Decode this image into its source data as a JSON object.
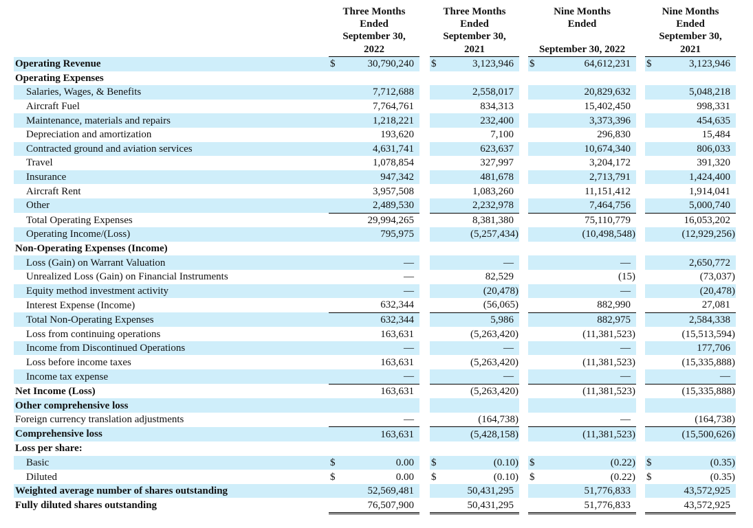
{
  "headers": [
    {
      "top": [
        "Three Months",
        "Ended",
        "September 30,"
      ],
      "bottom": "2022"
    },
    {
      "top": [
        "Three Months",
        "Ended",
        "September 30,"
      ],
      "bottom": "2021"
    },
    {
      "top": [
        "Nine Months",
        "Ended"
      ],
      "bottom": "September 30, 2022"
    },
    {
      "top": [
        "Nine Months",
        "Ended",
        "September 30,"
      ],
      "bottom": "2021"
    }
  ],
  "rows": [
    {
      "label": "Operating Revenue",
      "currency": [
        "$",
        "$",
        "$",
        "$"
      ],
      "values": [
        "30,790,240",
        "3,123,946",
        "64,612,231",
        "3,123,946"
      ]
    },
    {
      "label": "Operating Expenses"
    },
    {
      "label": "Salaries, Wages, & Benefits",
      "values": [
        "7,712,688",
        "2,558,017",
        "20,829,632",
        "5,048,218"
      ]
    },
    {
      "label": "Aircraft Fuel",
      "values": [
        "7,764,761",
        "834,313",
        "15,402,450",
        "998,331"
      ]
    },
    {
      "label": "Maintenance, materials and repairs",
      "values": [
        "1,218,221",
        "232,400",
        "3,373,396",
        "454,635"
      ]
    },
    {
      "label": "Depreciation and amortization",
      "values": [
        "193,620",
        "7,100",
        "296,830",
        "15,484"
      ]
    },
    {
      "label": "Contracted ground and aviation services",
      "values": [
        "4,631,741",
        "623,637",
        "10,674,340",
        "806,033"
      ]
    },
    {
      "label": "Travel",
      "values": [
        "1,078,854",
        "327,997",
        "3,204,172",
        "391,320"
      ]
    },
    {
      "label": "Insurance",
      "values": [
        "947,342",
        "481,678",
        "2,713,791",
        "1,424,400"
      ]
    },
    {
      "label": "Aircraft Rent",
      "values": [
        "3,957,508",
        "1,083,260",
        "11,151,412",
        "1,914,041"
      ]
    },
    {
      "label": "Other",
      "values": [
        "2,489,530",
        "2,232,978",
        "7,464,756",
        "5,000,740"
      ]
    },
    {
      "label": "Total Operating Expenses",
      "values": [
        "29,994,265",
        "8,381,380",
        "75,110,779",
        "16,053,202"
      ]
    },
    {
      "label": "Operating Income/(Loss)",
      "values": [
        "795,975",
        "(5,257,434)",
        "(10,498,548)",
        "(12,929,256)"
      ]
    },
    {
      "label": "Non-Operating Expenses (Income)"
    },
    {
      "label": "Loss (Gain) on Warrant Valuation",
      "values": [
        "—",
        "—",
        "—",
        "2,650,772"
      ]
    },
    {
      "label": "Unrealized Loss (Gain) on Financial Instruments",
      "values": [
        "—",
        "82,529",
        "(15)",
        "(73,037)"
      ]
    },
    {
      "label": "Equity method investment activity",
      "values": [
        "—",
        "(20,478)",
        "—",
        "(20,478)"
      ]
    },
    {
      "label": "Interest Expense (Income)",
      "values": [
        "632,344",
        "(56,065)",
        "882,990",
        "27,081"
      ]
    },
    {
      "label": "Total Non-Operating Expenses",
      "values": [
        "632,344",
        "5,986",
        "882,975",
        "2,584,338"
      ]
    },
    {
      "label": "Loss from continuing operations",
      "values": [
        "163,631",
        "(5,263,420)",
        "(11,381,523)",
        "(15,513,594)"
      ]
    },
    {
      "label": "Income from Discontinued Operations",
      "values": [
        "—",
        "—",
        "—",
        "177,706"
      ]
    },
    {
      "label": "Loss before income taxes",
      "values": [
        "163,631",
        "(5,263,420)",
        "(11,381,523)",
        "(15,335,888)"
      ]
    },
    {
      "label": "Income tax expense",
      "values": [
        "—",
        "—",
        "—",
        "—"
      ]
    },
    {
      "label": "Net Income (Loss)",
      "values": [
        "163,631",
        "(5,263,420)",
        "(11,381,523)",
        "(15,335,888)"
      ]
    },
    {
      "label": "Other comprehensive loss"
    },
    {
      "label": "Foreign currency translation adjustments",
      "values": [
        "—",
        "(164,738)",
        "—",
        "(164,738)"
      ]
    },
    {
      "label": "Comprehensive loss",
      "values": [
        "163,631",
        "(5,428,158)",
        "(11,381,523)",
        "(15,500,626)"
      ]
    },
    {
      "label": "Loss per share:"
    },
    {
      "label": "Basic",
      "currency": [
        "$",
        "$",
        "$",
        "$"
      ],
      "values": [
        "0.00",
        "(0.10)",
        "(0.22)",
        "(0.35)"
      ]
    },
    {
      "label": "Diluted",
      "currency": [
        "$",
        "$",
        "$",
        "$"
      ],
      "values": [
        "0.00",
        "(0.10)",
        "(0.22)",
        "(0.35)"
      ]
    },
    {
      "label": "Weighted average number of shares outstanding",
      "values": [
        "52,569,481",
        "50,431,295",
        "51,776,833",
        "43,572,925"
      ]
    },
    {
      "label": "Fully diluted shares outstanding",
      "values": [
        "76,507,900",
        "50,431,295",
        "51,776,833",
        "43,572,925"
      ]
    }
  ]
}
